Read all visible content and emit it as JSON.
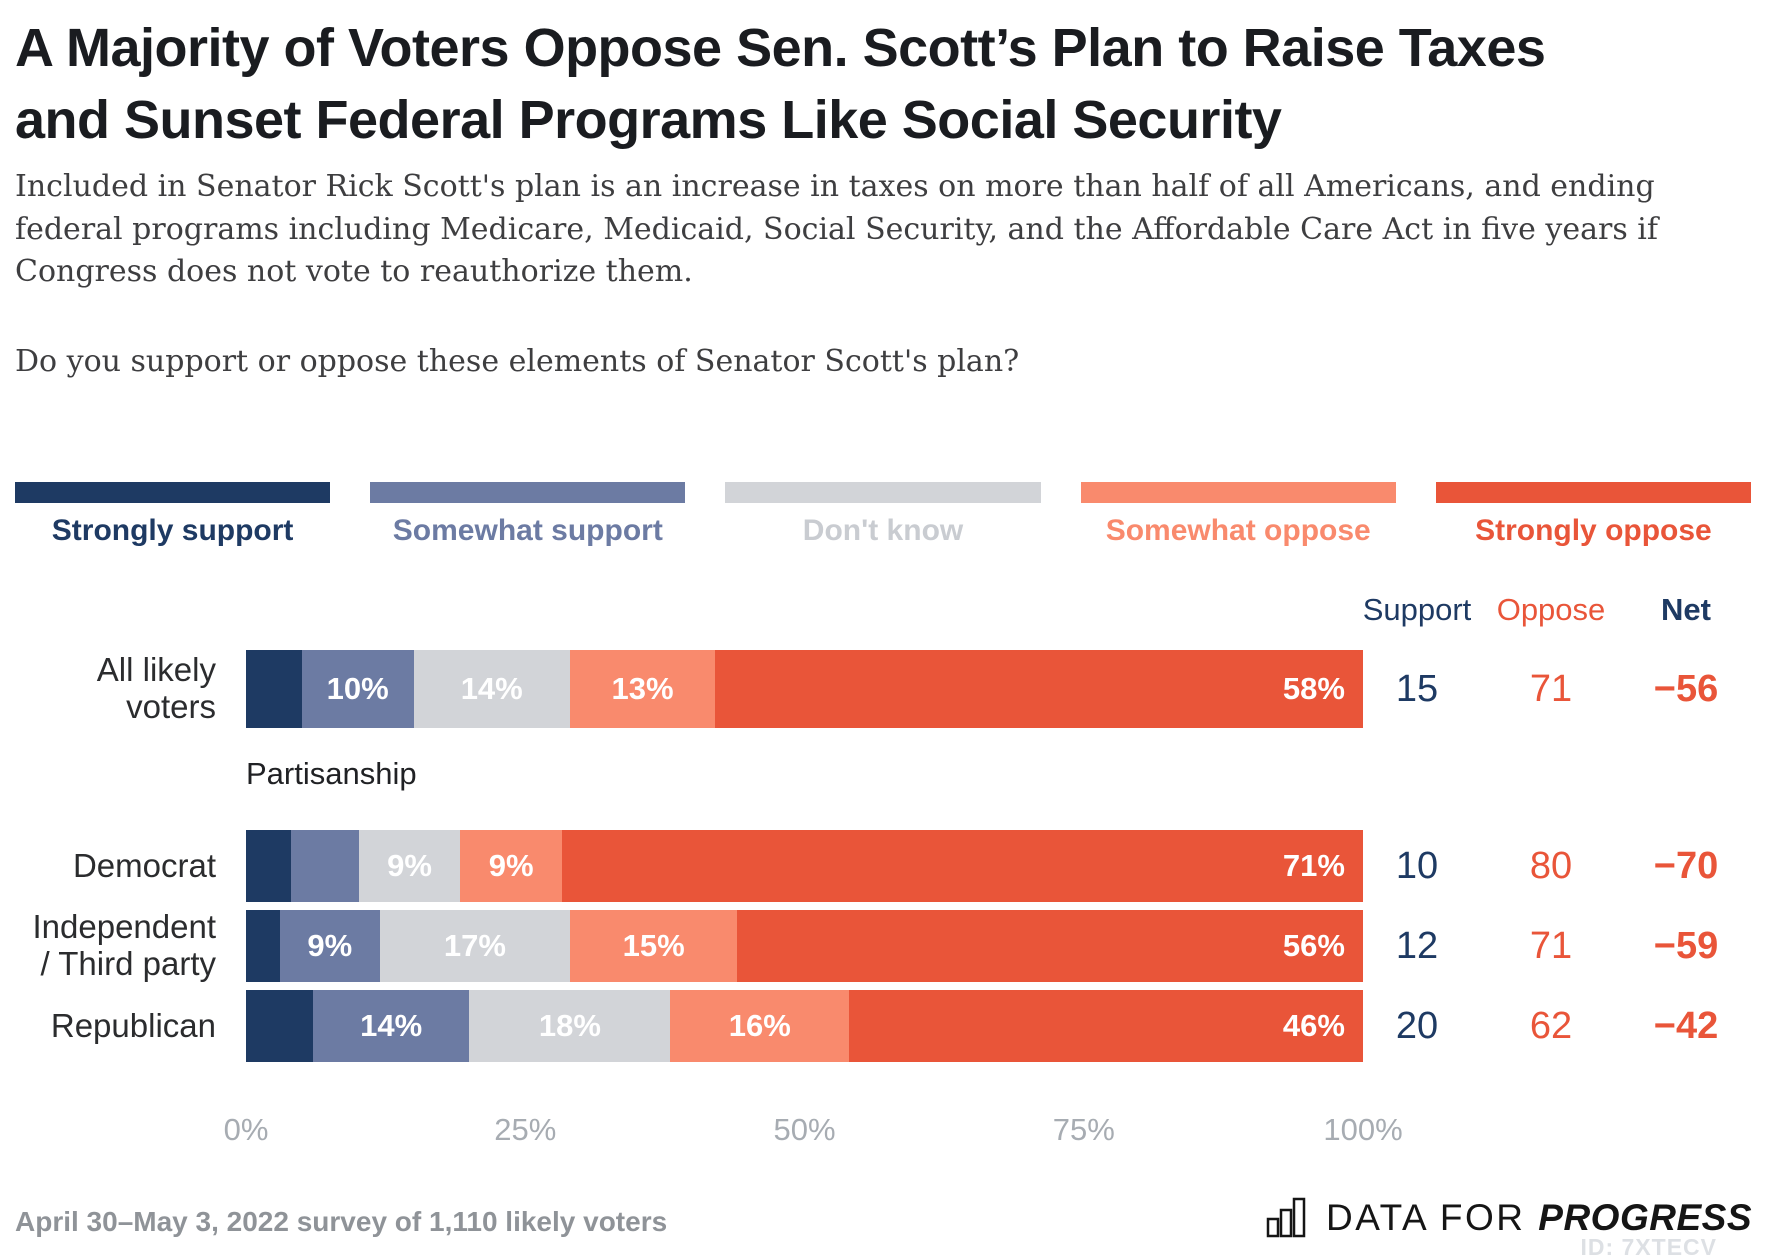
{
  "title": "A Majority of Voters Oppose Sen. Scott’s Plan to Raise Taxes and Sunset Federal Programs Like Social Security",
  "description": "Included in Senator Rick Scott's plan is an increase in taxes on more than half of all Americans, and ending federal programs including Medicare, Medicaid, Social Security, and the Affordable Care Act in five years if Congress does not vote to reauthorize them.",
  "question": "Do you support or oppose these elements of Senator Scott's plan?",
  "columns": {
    "support": "Support",
    "oppose": "Oppose",
    "net": "Net"
  },
  "chart_data": {
    "type": "bar",
    "stacked": true,
    "orientation": "horizontal",
    "legend_position": "top",
    "series_names": [
      "Strongly support",
      "Somewhat support",
      "Don't know",
      "Somewhat oppose",
      "Strongly oppose"
    ],
    "series_colors": [
      "#1e3a63",
      "#6c7ba3",
      "#d2d4d8",
      "#f98a6d",
      "#e95539"
    ],
    "legend_text_colors": [
      "#1e3a63",
      "#6c7ba3",
      "#c9ccd1",
      "#f98a6d",
      "#e95539"
    ],
    "section_label": "Partisanship",
    "section_after_row": 0,
    "categories": [
      "All likely voters",
      "Democrat",
      "Independent / Third party",
      "Republican"
    ],
    "rows": [
      {
        "category": "All likely voters",
        "label_lines": [
          "All likely",
          "voters"
        ],
        "values": [
          5,
          10,
          14,
          13,
          58
        ],
        "segment_labels": [
          "",
          "10%",
          "14%",
          "13%",
          "58%"
        ],
        "support": "15",
        "oppose": "71",
        "net": "−56"
      },
      {
        "category": "Democrat",
        "label_lines": [
          "Democrat"
        ],
        "values": [
          4,
          6,
          9,
          9,
          71
        ],
        "segment_labels": [
          "",
          "",
          "9%",
          "9%",
          "71%"
        ],
        "support": "10",
        "oppose": "80",
        "net": "−70"
      },
      {
        "category": "Independent / Third party",
        "label_lines": [
          "Independent",
          "/ Third party"
        ],
        "values": [
          3,
          9,
          17,
          15,
          56
        ],
        "segment_labels": [
          "",
          "9%",
          "17%",
          "15%",
          "56%"
        ],
        "support": "12",
        "oppose": "71",
        "net": "−59"
      },
      {
        "category": "Republican",
        "label_lines": [
          "Republican"
        ],
        "values": [
          6,
          14,
          18,
          16,
          46
        ],
        "segment_labels": [
          "",
          "14%",
          "18%",
          "16%",
          "46%"
        ],
        "support": "20",
        "oppose": "62",
        "net": "−42"
      }
    ],
    "x_axis": {
      "ticks": [
        "0%",
        "25%",
        "50%",
        "75%",
        "100%"
      ],
      "range": [
        0,
        100
      ],
      "grid": false
    }
  },
  "footer": "April 30–May 3, 2022 survey of 1,110 likely voters",
  "logo": {
    "prefix": "DATA FOR",
    "suffix": "PROGRESS",
    "icon": "bar-chart-icon"
  },
  "watermark_id": "ID: 7XTECV"
}
